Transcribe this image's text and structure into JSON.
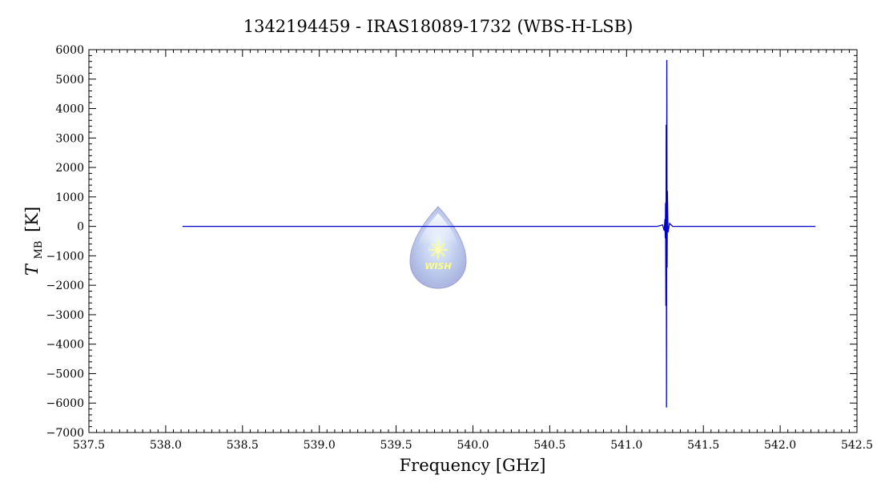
{
  "chart_data": {
    "type": "line",
    "title": "1342194459 - IRAS18089-1732 (WBS-H-LSB)",
    "xlabel": "Frequency [GHz]",
    "ylabel_main": "T",
    "ylabel_sub": "MB",
    "ylabel_unit": "[K]",
    "xlim": [
      537.5,
      542.5
    ],
    "ylim": [
      -7000,
      6000
    ],
    "xticks": [
      537.5,
      538.0,
      538.5,
      539.0,
      539.5,
      540.0,
      540.5,
      541.0,
      541.5,
      542.0,
      542.5
    ],
    "xtick_labels": [
      "537.5",
      "538.0",
      "538.5",
      "539.0",
      "539.5",
      "540.0",
      "540.5",
      "541.0",
      "541.5",
      "542.0",
      "542.5"
    ],
    "yticks": [
      -7000,
      -6000,
      -5000,
      -4000,
      -3000,
      -2000,
      -1000,
      0,
      1000,
      2000,
      3000,
      4000,
      5000,
      6000
    ],
    "ytick_labels": [
      "−7000",
      "−6000",
      "−5000",
      "−4000",
      "−3000",
      "−2000",
      "−1000",
      "0",
      "1000",
      "2000",
      "3000",
      "4000",
      "5000",
      "6000"
    ],
    "series": [
      {
        "color": "#0000cc",
        "x": [
          538.11,
          539.5,
          540.5,
          541.2,
          541.235,
          541.245,
          541.25,
          541.252,
          541.254,
          541.256,
          541.258,
          541.26,
          541.262,
          541.264,
          541.266,
          541.27,
          541.28,
          541.3,
          541.5,
          542.0,
          542.23
        ],
        "y": [
          0,
          0,
          0,
          0,
          50,
          -150,
          250,
          -400,
          800,
          -2700,
          3450,
          -6150,
          5650,
          -1400,
          1200,
          -200,
          100,
          0,
          0,
          0,
          0
        ]
      }
    ],
    "grid": false,
    "logo_text": "WISH",
    "logo_position": "center-left",
    "colors": {
      "line": "#0000cc",
      "axis": "#000000",
      "logo_drop": "#aab4e0",
      "logo_star": "#ffff66"
    }
  }
}
